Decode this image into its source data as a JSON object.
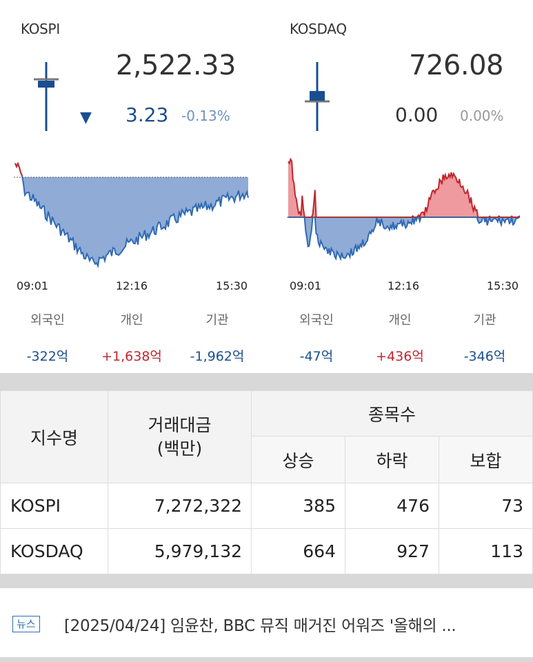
{
  "markets": [
    {
      "name": "KOSPI",
      "value": "2,522.33",
      "change": "3.23",
      "change_pct": "-0.13%",
      "direction": "down",
      "times": [
        "09:01",
        "12:16",
        "15:30"
      ],
      "investors": [
        {
          "label": "외국인",
          "amount": "-322억"
        },
        {
          "label": "개인",
          "amount": "+1,638억"
        },
        {
          "label": "기관",
          "amount": "-1,962억"
        }
      ]
    },
    {
      "name": "KOSDAQ",
      "value": "726.08",
      "change": "0.00",
      "change_pct": "0.00%",
      "direction": "flat",
      "times": [
        "09:01",
        "12:16",
        "15:30"
      ],
      "investors": [
        {
          "label": "외국인",
          "amount": "-47억"
        },
        {
          "label": "개인",
          "amount": "+436억"
        },
        {
          "label": "기관",
          "amount": "-346억"
        }
      ]
    }
  ],
  "table": {
    "col_name": "지수명",
    "col_volume": "거래대금\n(백만)",
    "col_count": "종목수",
    "col_up": "상승",
    "col_down": "하락",
    "col_flat": "보합",
    "rows": [
      {
        "name": "KOSPI",
        "volume": "7,272,322",
        "up": "385",
        "down": "476",
        "flat": "73"
      },
      {
        "name": "KOSDAQ",
        "volume": "5,979,132",
        "up": "664",
        "down": "927",
        "flat": "113"
      }
    ]
  },
  "news": {
    "badge": "뉴스",
    "headline": "[2025/04/24] 임윤찬, BBC 뮤직 매거진 어워즈 '올해의 ..."
  },
  "colors": {
    "down": "#1a4e8f",
    "up": "#c0262d",
    "area_down": "#7d9fd0",
    "area_up": "#ee9a9f"
  }
}
